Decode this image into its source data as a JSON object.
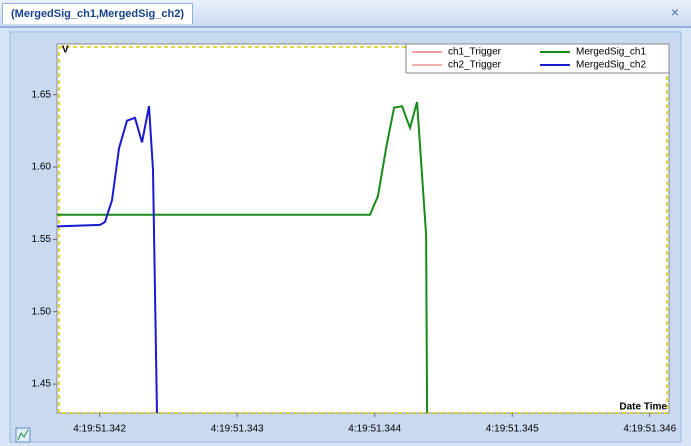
{
  "tab": {
    "title": "(MergedSig_ch1,MergedSig_ch2)",
    "close": "×"
  },
  "chart_data": {
    "type": "line",
    "y_label": "V",
    "x_label": "Date Time",
    "xlim": [
      341.69,
      346.14
    ],
    "ylim": [
      1.43,
      1.685
    ],
    "xticks": [
      {
        "value": 342,
        "label": "4:19:51.342"
      },
      {
        "value": 343,
        "label": "4:19:51.343"
      },
      {
        "value": 344,
        "label": "4:19:51.344"
      },
      {
        "value": 345,
        "label": "4:19:51.345"
      },
      {
        "value": 346,
        "label": "4:19:51.346"
      }
    ],
    "yticks": [
      {
        "value": 1.45,
        "label": "1.45"
      },
      {
        "value": 1.5,
        "label": "1.50"
      },
      {
        "value": 1.55,
        "label": "1.55"
      },
      {
        "value": 1.6,
        "label": "1.60"
      },
      {
        "value": 1.65,
        "label": "1.65"
      }
    ],
    "series": [
      {
        "name": "ch1_Trigger",
        "color": "#e04040",
        "x": [],
        "values": []
      },
      {
        "name": "ch2_Trigger",
        "color": "#e06060",
        "x": [],
        "values": []
      },
      {
        "name": "MergedSig_ch1",
        "color": "#1a8a1a",
        "x": [
          341.69,
          343.966,
          344.024,
          344.083,
          344.141,
          344.199,
          344.257,
          344.308,
          344.374,
          344.381
        ],
        "values": [
          1.567,
          1.567,
          1.58,
          1.613,
          1.641,
          1.642,
          1.627,
          1.645,
          1.553,
          1.43
        ]
      },
      {
        "name": "MergedSig_ch2",
        "color": "#1a1ad0",
        "x": [
          341.69,
          342.003,
          342.039,
          342.09,
          342.141,
          342.199,
          342.257,
          342.308,
          342.359,
          342.388,
          342.417
        ],
        "values": [
          1.559,
          1.56,
          1.562,
          1.577,
          1.613,
          1.632,
          1.634,
          1.617,
          1.642,
          1.598,
          1.43
        ]
      }
    ]
  }
}
